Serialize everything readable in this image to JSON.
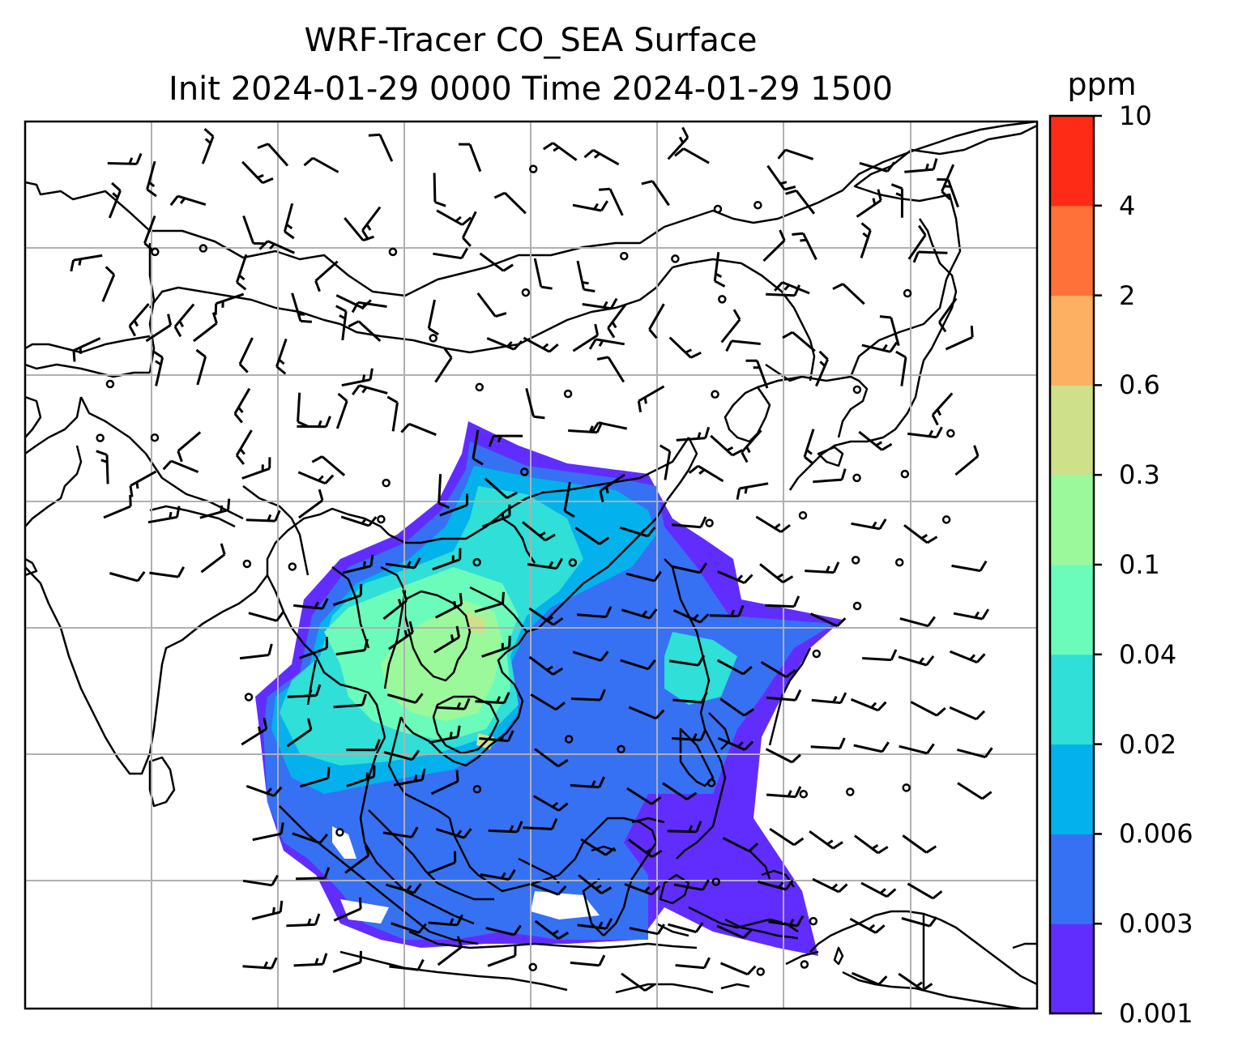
{
  "title_line1": "WRF-Tracer CO_SEA Surface",
  "title_line2": "Init 2024-01-29 0000 Time 2024-01-29 1500",
  "colorbar": {
    "unit": "ppm",
    "levels": [
      "0.001",
      "0.003",
      "0.006",
      "0.02",
      "0.04",
      "0.1",
      "0.3",
      "0.6",
      "2",
      "4",
      "10"
    ],
    "colors": [
      "#612dff",
      "#3671f4",
      "#03b2ec",
      "#2fdfd8",
      "#6bfcbc",
      "#9bf99b",
      "#cfe08a",
      "#fdaf62",
      "#ff7138",
      "#fe2b17"
    ]
  },
  "map": {
    "region": "Southeast Asia",
    "gridlines": true,
    "coastlines": true,
    "wind_barbs": true,
    "tracer_shading": "CO_SEA"
  }
}
